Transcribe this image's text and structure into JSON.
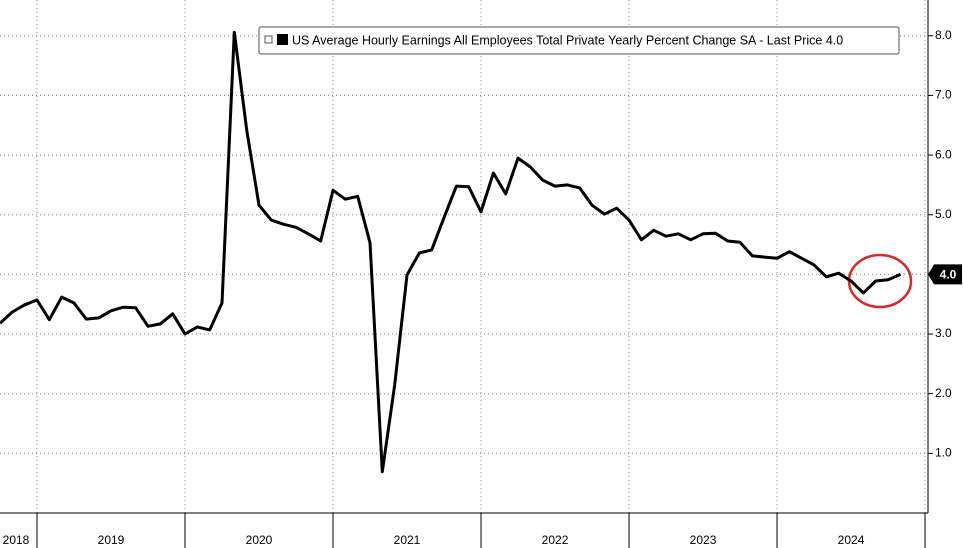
{
  "chart_data": {
    "type": "line",
    "series": [
      {
        "name": "US Average Hourly Earnings All Employees Total Private Yearly Percent Change SA - Last Price 4.0",
        "color": "#000000",
        "values": [
          3.18,
          3.37,
          3.49,
          3.57,
          3.24,
          3.62,
          3.52,
          3.25,
          3.27,
          3.39,
          3.45,
          3.44,
          3.13,
          3.17,
          3.34,
          3.0,
          3.12,
          3.07,
          3.52,
          8.06,
          6.42,
          5.16,
          4.91,
          4.84,
          4.79,
          4.68,
          4.56,
          5.41,
          5.26,
          5.31,
          4.53,
          0.69,
          2.15,
          3.99,
          4.36,
          4.41,
          4.95,
          5.48,
          5.47,
          5.05,
          5.7,
          5.35,
          5.95,
          5.8,
          5.58,
          5.48,
          5.5,
          5.45,
          5.16,
          5.01,
          5.11,
          4.91,
          4.58,
          4.74,
          4.64,
          4.68,
          4.58,
          4.68,
          4.69,
          4.56,
          4.54,
          4.31,
          4.29,
          4.27,
          4.38,
          4.27,
          4.16,
          3.96,
          4.02,
          3.89,
          3.69,
          3.89,
          3.91,
          4.0
        ]
      }
    ],
    "last_label": "4.0",
    "x_start": 2018.75,
    "x_step_per_year": 12,
    "xlim": [
      2018.75,
      2025.02
    ],
    "xticks": [
      {
        "value": 2018.5,
        "label": "2018"
      },
      {
        "value": 2019.5,
        "label": "2019"
      },
      {
        "value": 2020.5,
        "label": "2020"
      },
      {
        "value": 2021.5,
        "label": "2021"
      },
      {
        "value": 2022.5,
        "label": "2022"
      },
      {
        "value": 2023.5,
        "label": "2023"
      },
      {
        "value": 2024.5,
        "label": "2024"
      }
    ],
    "ylim": [
      0,
      8.6
    ],
    "yticks": [
      {
        "value": 1,
        "label": "1.0"
      },
      {
        "value": 2,
        "label": "2.0"
      },
      {
        "value": 3,
        "label": "3.0"
      },
      {
        "value": 4,
        "label": "4.0"
      },
      {
        "value": 5,
        "label": "5.0"
      },
      {
        "value": 6,
        "label": "6.0"
      },
      {
        "value": 7,
        "label": "7.0"
      },
      {
        "value": 8,
        "label": "8.0"
      }
    ],
    "grid": true
  }
}
